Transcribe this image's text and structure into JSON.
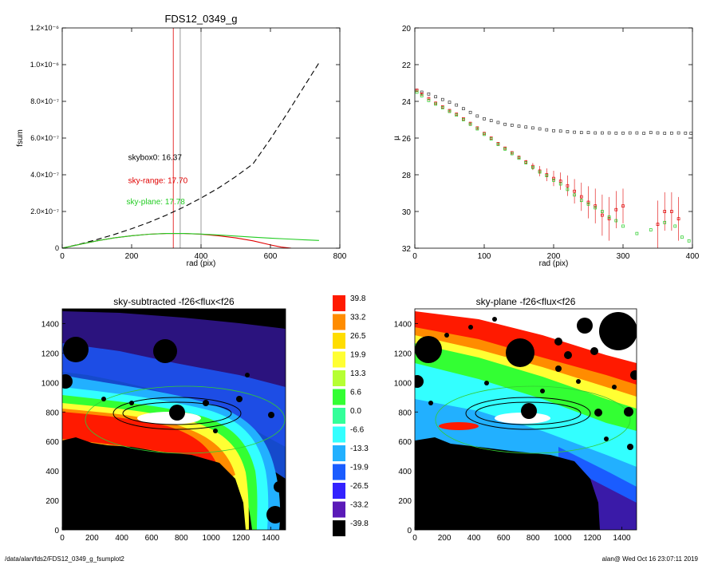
{
  "footer": {
    "path": "/data/alan/fds2/FDS12_0349_g_fsumplot2",
    "stamp": "alan@  Wed Oct 16 23:07:11 2019"
  },
  "chart_data": [
    {
      "id": "fsum",
      "type": "line",
      "title": "FDS12_0349_g",
      "xlabel": "rad (pix)",
      "ylabel": "fsum",
      "xlim": [
        0,
        800
      ],
      "ylim": [
        0,
        1.2e-06
      ],
      "xticks": [
        0,
        200,
        400,
        600,
        800
      ],
      "ytick_labels": [
        "0",
        "2.0×10⁻⁷",
        "4.0×10⁻⁷",
        "6.0×10⁻⁷",
        "8.0×10⁻⁷",
        "1.0×10⁻⁶",
        "1.2×10⁻⁶"
      ],
      "yticks": [
        0,
        2e-07,
        4e-07,
        6e-07,
        8e-07,
        1e-06,
        1.2e-06
      ],
      "vlines": [
        {
          "x": 320,
          "color": "#e00000"
        },
        {
          "x": 340,
          "color": "#808080"
        },
        {
          "x": 400,
          "color": "#808080"
        }
      ],
      "annotations": [
        {
          "text": "skybox0: 16.37",
          "x": 190,
          "y": 4.8e-07,
          "color": "#000000"
        },
        {
          "text": "sky-range: 17.70",
          "x": 190,
          "y": 3.55e-07,
          "color": "#e00000"
        },
        {
          "text": "sky-plane: 17.78",
          "x": 185,
          "y": 2.4e-07,
          "color": "#22cc22"
        }
      ],
      "series": [
        {
          "style": "dashed",
          "color": "#000000",
          "x": [
            0,
            50,
            100,
            150,
            200,
            250,
            300,
            350,
            400,
            450,
            500,
            550,
            600,
            650,
            700,
            740
          ],
          "y": [
            0,
            2.2e-08,
            4.7e-08,
            7.5e-08,
            1.06e-07,
            1.41e-07,
            1.8e-07,
            2.24e-07,
            2.73e-07,
            3.28e-07,
            3.9e-07,
            4.6e-07,
            5.95e-07,
            7.4e-07,
            8.9e-07,
            1.01e-06
          ]
        },
        {
          "style": "solid",
          "color": "#e00000",
          "x": [
            0,
            30,
            60,
            100,
            150,
            200,
            250,
            300,
            350,
            400,
            450,
            500,
            550,
            600,
            630,
            660
          ],
          "y": [
            0,
            1.2e-08,
            2.5e-08,
            4e-08,
            5.6e-08,
            6.8e-08,
            7.6e-08,
            8e-08,
            8e-08,
            7.6e-08,
            6.8e-08,
            5.6e-08,
            4e-08,
            1.8e-08,
            6e-09,
            0
          ]
        },
        {
          "style": "solid",
          "color": "#22cc22",
          "x": [
            0,
            30,
            60,
            100,
            150,
            200,
            250,
            300,
            350,
            400,
            450,
            500,
            550,
            600,
            650,
            700,
            740
          ],
          "y": [
            0,
            1.2e-08,
            2.5e-08,
            4e-08,
            5.6e-08,
            6.8e-08,
            7.6e-08,
            8e-08,
            8e-08,
            7.7e-08,
            7.2e-08,
            6.6e-08,
            6e-08,
            5.5e-08,
            5e-08,
            4.5e-08,
            4.2e-08
          ]
        }
      ]
    },
    {
      "id": "mu",
      "type": "scatter",
      "title": "",
      "xlabel": "rad (pix)",
      "ylabel": "µ",
      "xlim": [
        0,
        400
      ],
      "ylim": [
        32,
        20
      ],
      "xticks": [
        0,
        100,
        200,
        300,
        400
      ],
      "yticks": [
        20,
        22,
        24,
        26,
        28,
        30,
        32
      ],
      "series": [
        {
          "color": "#333333",
          "x": [
            3,
            10,
            20,
            30,
            40,
            50,
            60,
            70,
            80,
            90,
            100,
            110,
            120,
            130,
            140,
            150,
            160,
            170,
            180,
            190,
            200,
            210,
            220,
            230,
            240,
            250,
            260,
            270,
            280,
            290,
            300,
            310,
            320,
            330,
            340,
            350,
            360,
            370,
            380,
            390,
            398
          ],
          "y": [
            23.4,
            23.5,
            23.6,
            23.75,
            23.9,
            24.05,
            24.2,
            24.4,
            24.6,
            24.8,
            24.95,
            25.05,
            25.15,
            25.25,
            25.3,
            25.35,
            25.4,
            25.45,
            25.5,
            25.55,
            25.6,
            25.62,
            25.65,
            25.68,
            25.7,
            25.7,
            25.72,
            25.72,
            25.72,
            25.73,
            25.73,
            25.72,
            25.72,
            25.74,
            25.7,
            25.72,
            25.74,
            25.73,
            25.72,
            25.73,
            25.74
          ]
        },
        {
          "color": "#e00000",
          "x": [
            3,
            10,
            20,
            30,
            40,
            50,
            60,
            70,
            80,
            90,
            100,
            110,
            120,
            130,
            140,
            150,
            160,
            170,
            180,
            190,
            200,
            210,
            220,
            230,
            240,
            250,
            260,
            270,
            280,
            290,
            300,
            350,
            360,
            370,
            380
          ],
          "y": [
            23.4,
            23.6,
            23.85,
            24.1,
            24.3,
            24.5,
            24.7,
            24.95,
            25.2,
            25.45,
            25.75,
            26.0,
            26.3,
            26.55,
            26.8,
            27.05,
            27.3,
            27.55,
            27.8,
            28.0,
            28.2,
            28.35,
            28.6,
            28.9,
            29.2,
            29.5,
            29.7,
            30.2,
            30.4,
            29.9,
            29.7,
            30.7,
            30.0,
            30.0,
            30.4
          ]
        },
        {
          "color": "#22cc22",
          "x": [
            3,
            10,
            20,
            30,
            40,
            50,
            60,
            70,
            80,
            90,
            100,
            110,
            120,
            130,
            140,
            150,
            160,
            170,
            180,
            190,
            200,
            210,
            220,
            230,
            240,
            250,
            260,
            270,
            280,
            290,
            300,
            320,
            340,
            360,
            375,
            385,
            395
          ],
          "y": [
            23.5,
            23.7,
            23.95,
            24.15,
            24.35,
            24.55,
            24.75,
            25.0,
            25.25,
            25.5,
            25.8,
            26.05,
            26.35,
            26.6,
            26.85,
            27.1,
            27.35,
            27.6,
            27.85,
            28.05,
            28.3,
            28.5,
            28.8,
            29.1,
            29.4,
            29.6,
            29.8,
            30.0,
            30.3,
            30.5,
            30.8,
            31.2,
            31.0,
            30.6,
            30.8,
            31.4,
            31.6
          ]
        }
      ]
    },
    {
      "id": "sky-subtracted",
      "type": "heatmap",
      "title": "sky-subtracted -f26<flux<f26",
      "xlim": [
        0,
        1500
      ],
      "ylim": [
        0,
        1500
      ],
      "xticks": [
        0,
        200,
        400,
        600,
        800,
        1000,
        1200,
        1400
      ],
      "yticks": [
        0,
        200,
        400,
        600,
        800,
        1000,
        1200,
        1400
      ]
    },
    {
      "id": "sky-plane",
      "type": "heatmap",
      "title": "sky-plane -f26<flux<f26",
      "xlim": [
        0,
        1500
      ],
      "ylim": [
        0,
        1500
      ],
      "xticks": [
        0,
        200,
        400,
        600,
        800,
        1000,
        1200,
        1400
      ],
      "yticks": [
        0,
        200,
        400,
        600,
        800,
        1000,
        1200,
        1400
      ]
    }
  ],
  "colorbar": {
    "labels": [
      "39.8",
      "33.2",
      "26.5",
      "19.9",
      "13.3",
      "6.6",
      "0.0",
      "-6.6",
      "-13.3",
      "-19.9",
      "-26.5",
      "-33.2",
      "-39.8"
    ],
    "colors": [
      "#ff1a00",
      "#ff8c00",
      "#ffdd00",
      "#ffff33",
      "#b6ff33",
      "#33ff33",
      "#33ff99",
      "#33ffff",
      "#22b0ff",
      "#1a5cff",
      "#3322ff",
      "#5a1ab8",
      "#000000"
    ]
  }
}
